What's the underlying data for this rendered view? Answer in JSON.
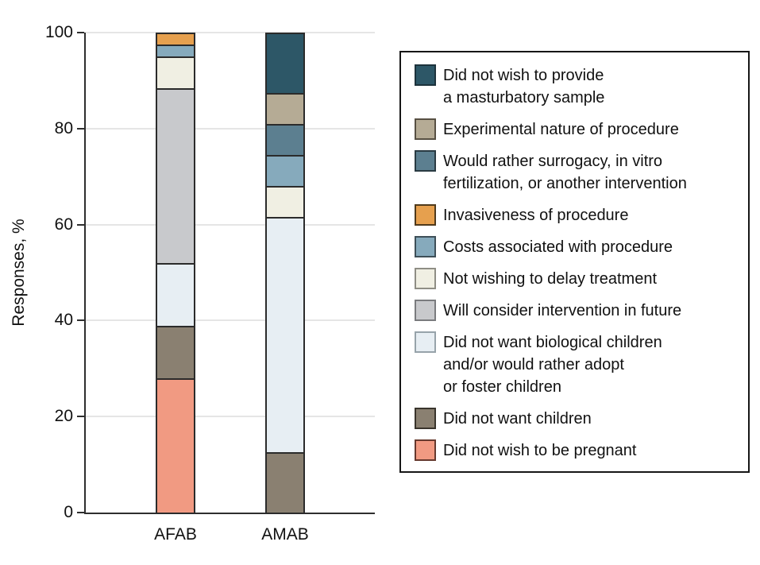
{
  "figure": {
    "background": "#ffffff",
    "axis_color": "#2e2e2e",
    "gridline_color": "#e5e5e5"
  },
  "chart_data": {
    "type": "bar",
    "stacked": true,
    "title": "",
    "xlabel": "",
    "ylabel": "Responses, %",
    "ylim": [
      0,
      100
    ],
    "yticks": [
      0,
      20,
      40,
      60,
      80,
      100
    ],
    "grid": "horizontal",
    "legend_position": "right",
    "categories": [
      "AFAB",
      "AMAB"
    ],
    "series": [
      {
        "name": "did-not-wish-to-provide-masturbatory-sample",
        "label": "Did not wish to provide\na masturbatory sample",
        "color": "#2d5767",
        "border": "#1d333c",
        "values": [
          0,
          12.5
        ]
      },
      {
        "name": "experimental-nature-of-procedure",
        "label": "Experimental nature of procedure",
        "color": "#b5ab95",
        "border": "#575043",
        "values": [
          0,
          6.3
        ]
      },
      {
        "name": "would-rather-surrogacy-ivf-or-other",
        "label": "Would rather surrogacy, in vitro\nfertilization, or another intervention",
        "color": "#5c7f90",
        "border": "#2a3b43",
        "values": [
          0,
          6.3
        ]
      },
      {
        "name": "invasiveness-of-procedure",
        "label": "Invasiveness of procedure",
        "color": "#e6a04e",
        "border": "#4f3a1c",
        "values": [
          2.2,
          0
        ]
      },
      {
        "name": "costs-associated-with-procedure",
        "label": "Costs associated with procedure",
        "color": "#86aabc",
        "border": "#3e4f58",
        "values": [
          2.2,
          6.3
        ]
      },
      {
        "name": "not-wishing-to-delay-treatment",
        "label": "Not wishing to delay treatment",
        "color": "#f0efe3",
        "border": "#8f8e85",
        "values": [
          6.5,
          6.3
        ]
      },
      {
        "name": "will-consider-intervention-in-future",
        "label": "Will consider intervention in future",
        "color": "#c8c9cc",
        "border": "#7a7b7e",
        "values": [
          37.0,
          0
        ]
      },
      {
        "name": "did-not-want-biological-children",
        "label": "Did not want biological children\nand/or would rather adopt\nor foster children",
        "color": "#e7eef3",
        "border": "#97a3aa",
        "values": [
          13.0,
          50.0
        ]
      },
      {
        "name": "did-not-want-children",
        "label": "Did not want children",
        "color": "#8a8071",
        "border": "#39342c",
        "values": [
          10.9,
          12.5
        ]
      },
      {
        "name": "did-not-wish-to-be-pregnant",
        "label": "Did not wish to be pregnant",
        "color": "#f19a82",
        "border": "#66392e",
        "values": [
          28.3,
          0
        ]
      }
    ]
  }
}
